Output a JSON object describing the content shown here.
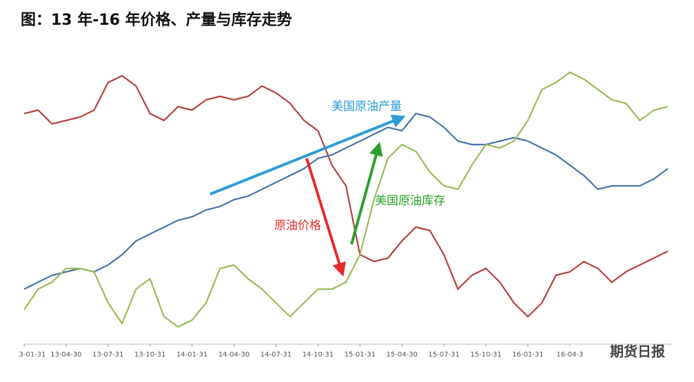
{
  "chart_data": {
    "type": "line",
    "title": "图：13 年-16 年价格、产量与库存走势",
    "watermark": "期货日报",
    "categories": [
      "3-01-31",
      null,
      null,
      "13-04-30",
      null,
      null,
      "13-07-31",
      null,
      null,
      "13-10-31",
      null,
      null,
      "14-01-31",
      null,
      null,
      "14-04-30",
      null,
      null,
      "14-07-31",
      null,
      null,
      "14-10-31",
      null,
      null,
      "15-01-31",
      null,
      null,
      "15-04-30",
      null,
      null,
      "15-07-31",
      null,
      null,
      "15-10-31",
      null,
      null,
      "16-01-31",
      null,
      null,
      "16-04-3",
      null,
      null,
      null,
      null,
      null,
      null,
      null
    ],
    "ylim": [
      0,
      100
    ],
    "series": [
      {
        "name": "原油价格",
        "color": "#b5413f",
        "values": [
          83.75,
          85,
          80,
          81.25,
          82.5,
          85,
          95,
          97.5,
          93.75,
          83.75,
          81.25,
          86.25,
          85,
          88.75,
          90,
          88.75,
          90,
          93.75,
          91.25,
          87.5,
          81.25,
          77.5,
          65,
          57.5,
          32.5,
          30,
          31.25,
          37.5,
          42.5,
          41.25,
          32.5,
          20,
          25,
          27.5,
          22.5,
          15,
          10,
          15,
          25,
          26.25,
          30,
          27.5,
          22.5,
          26.25,
          28.75,
          31.25,
          33.75
        ]
      },
      {
        "name": "美国原油产量",
        "color": "#4a74a8",
        "values": [
          20,
          22.5,
          25,
          26.25,
          27.5,
          26.25,
          28.75,
          32.5,
          37.5,
          40,
          42.5,
          45,
          46.25,
          48.75,
          50,
          52.5,
          53.75,
          56.25,
          58.75,
          61.25,
          63.75,
          67.5,
          68.75,
          71.25,
          73.75,
          76.25,
          78.75,
          77.5,
          83.75,
          82.5,
          78.75,
          73.75,
          72.5,
          72.5,
          73.75,
          75,
          73.75,
          71.25,
          68.75,
          65,
          61.25,
          56.25,
          57.5,
          57.5,
          57.5,
          60,
          63.75
        ]
      },
      {
        "name": "美国原油库存",
        "color": "#9bbb59",
        "values": [
          12.5,
          20,
          22.5,
          27.5,
          27.5,
          26.25,
          15,
          7.5,
          20,
          23.75,
          10,
          6.25,
          8.75,
          15,
          27.5,
          28.75,
          23.75,
          20,
          15,
          10,
          15,
          20,
          20,
          22.5,
          32.5,
          52.5,
          67.5,
          72.5,
          70,
          62.5,
          57.5,
          56.25,
          65,
          72.5,
          71.25,
          73.75,
          81.25,
          92.5,
          95,
          98.75,
          96.25,
          92.5,
          88.75,
          87.5,
          81.25,
          85,
          86.25
        ]
      }
    ]
  }
}
